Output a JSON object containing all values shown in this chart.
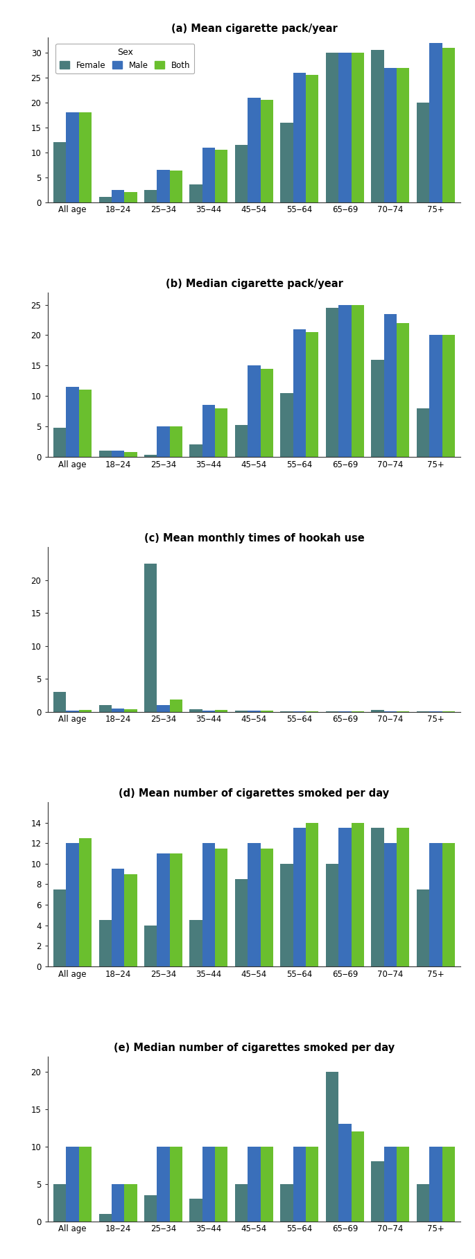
{
  "categories": [
    "All age",
    "18‒24",
    "25‒34",
    "35‒44",
    "45‒54",
    "55‒64",
    "65‒69",
    "70‒74",
    "75+"
  ],
  "colors": {
    "Female": "#4a7c7c",
    "Male": "#3a6fba",
    "Both": "#6abf2e"
  },
  "charts": [
    {
      "title": "(a) Mean cigarette pack/year",
      "ylim": [
        0,
        33
      ],
      "yticks": [
        0,
        5,
        10,
        15,
        20,
        25,
        30
      ],
      "data": {
        "Female": [
          12,
          1,
          2.5,
          3.5,
          11.5,
          16,
          30,
          30.5,
          20
        ],
        "Male": [
          18,
          2.5,
          6.5,
          11,
          21,
          26,
          30,
          27,
          32
        ],
        "Both": [
          18,
          2,
          6.3,
          10.5,
          20.5,
          25.5,
          30,
          27,
          31
        ]
      }
    },
    {
      "title": "(b) Median cigarette pack/year",
      "ylim": [
        0,
        27
      ],
      "yticks": [
        0,
        5,
        10,
        15,
        20,
        25
      ],
      "data": {
        "Female": [
          4.8,
          1,
          0.3,
          2,
          5.2,
          10.5,
          24.5,
          16,
          8
        ],
        "Male": [
          11.5,
          1,
          5,
          8.5,
          15,
          21,
          25,
          23.5,
          20
        ],
        "Both": [
          11,
          0.8,
          5,
          8,
          14.5,
          20.5,
          25,
          22,
          20
        ]
      }
    },
    {
      "title": "(c) Mean monthly times of hookah use",
      "ylim": [
        0,
        25
      ],
      "yticks": [
        0,
        5,
        10,
        15,
        20
      ],
      "data": {
        "Female": [
          3,
          1,
          22.5,
          0.4,
          0.15,
          0.1,
          0.1,
          0.3,
          0.1
        ],
        "Male": [
          0.15,
          0.5,
          1,
          0.2,
          0.15,
          0.05,
          0.05,
          0.05,
          0.05
        ],
        "Both": [
          0.3,
          0.4,
          1.8,
          0.3,
          0.15,
          0.05,
          0.05,
          0.05,
          0.05
        ]
      }
    },
    {
      "title": "(d) Mean number of cigarettes smoked per day",
      "ylim": [
        0,
        16
      ],
      "yticks": [
        0,
        2,
        4,
        6,
        8,
        10,
        12,
        14
      ],
      "data": {
        "Female": [
          7.5,
          4.5,
          4,
          4.5,
          8.5,
          10,
          10,
          13.5,
          7.5
        ],
        "Male": [
          12,
          9.5,
          11,
          12,
          12,
          13.5,
          13.5,
          12,
          12
        ],
        "Both": [
          12.5,
          9,
          11,
          11.5,
          11.5,
          14,
          14,
          13.5,
          12
        ]
      }
    },
    {
      "title": "(e) Median number of cigarettes smoked per day",
      "ylim": [
        0,
        22
      ],
      "yticks": [
        0,
        5,
        10,
        15,
        20
      ],
      "data": {
        "Female": [
          5,
          1,
          3.5,
          3,
          5,
          5,
          20,
          8,
          5
        ],
        "Male": [
          10,
          5,
          10,
          10,
          10,
          10,
          13,
          10,
          10
        ],
        "Both": [
          10,
          5,
          10,
          10,
          10,
          10,
          12,
          10,
          10
        ]
      }
    }
  ],
  "bar_width": 0.28
}
